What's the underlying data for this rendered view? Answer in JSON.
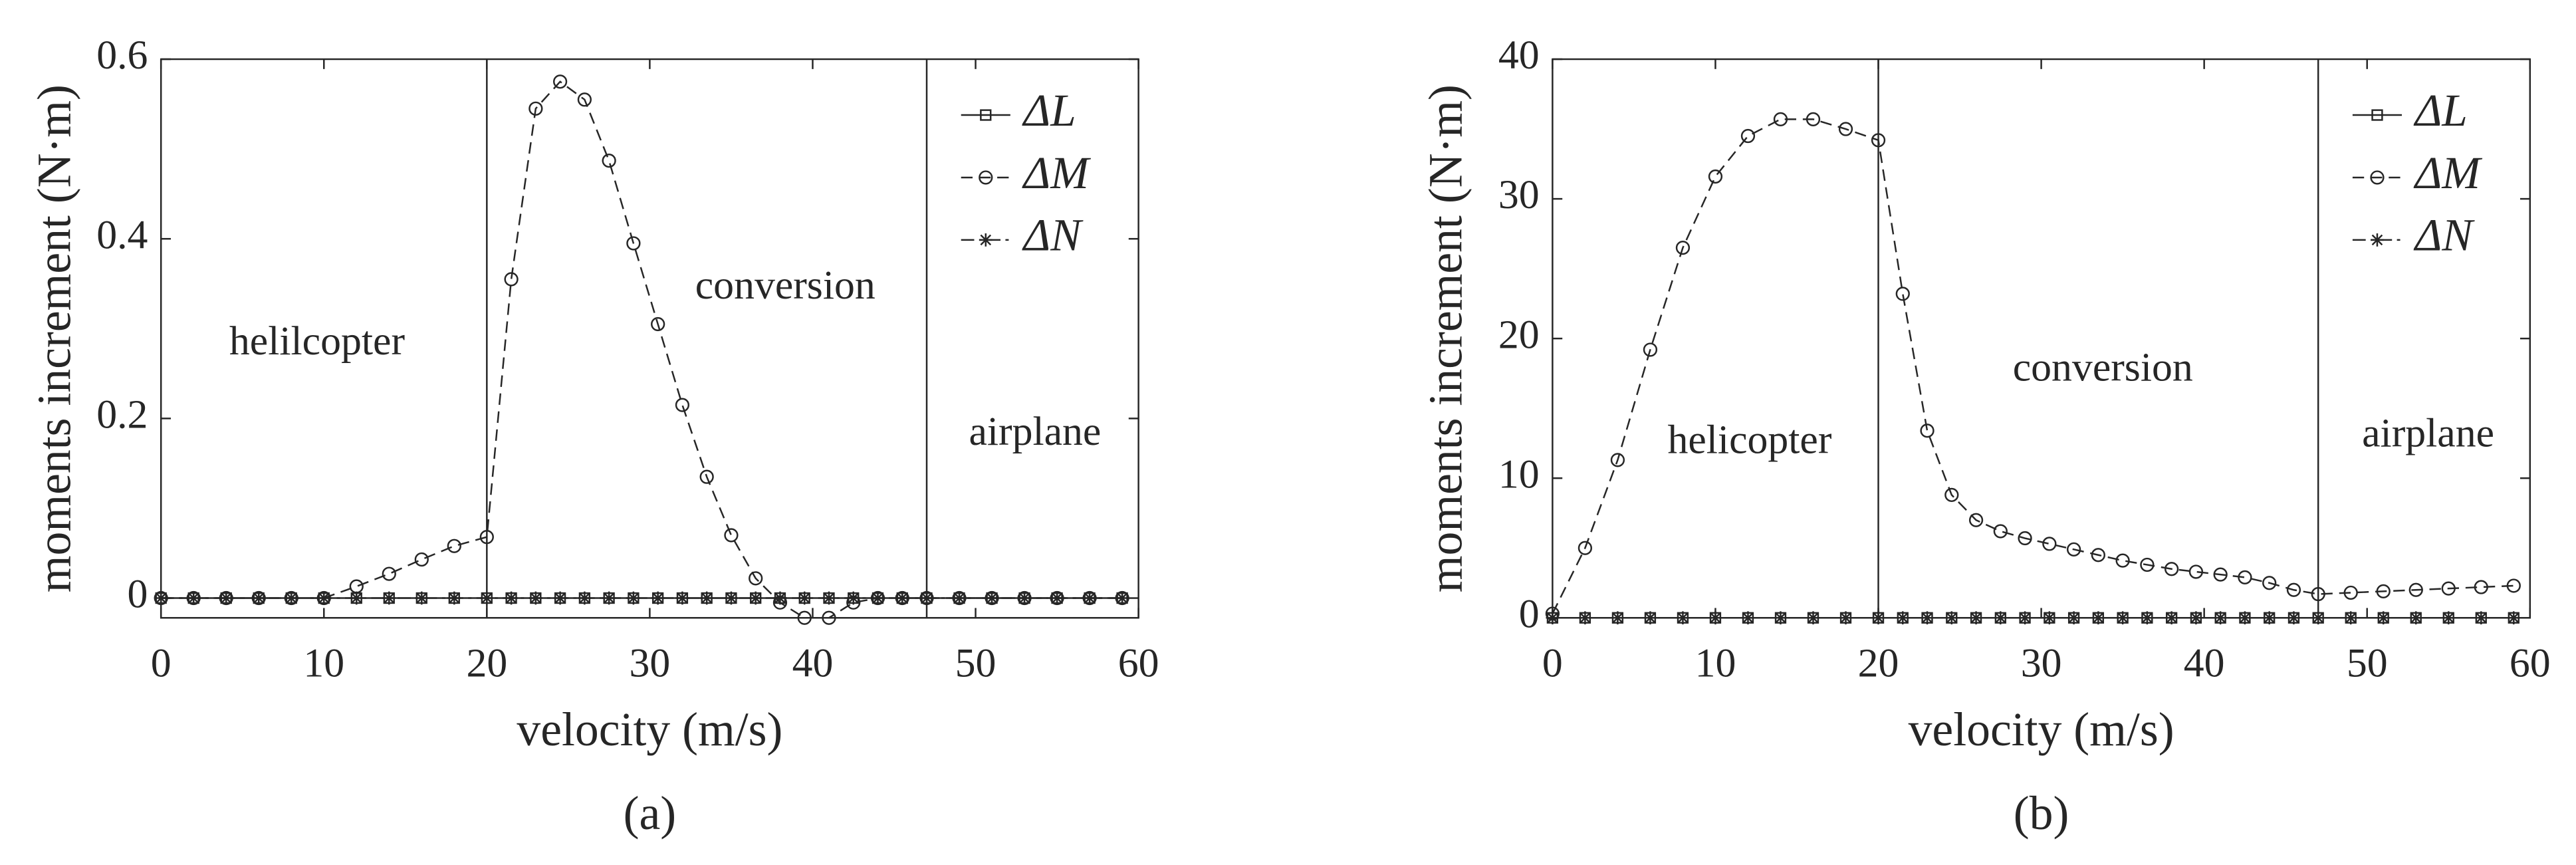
{
  "chart_data": [
    {
      "type": "line",
      "label": "(a)",
      "xlabel": "velocity (m/s)",
      "ylabel": "moments increment (N·m)",
      "x": [
        0,
        2,
        4,
        6,
        8,
        10,
        12,
        14,
        16,
        18,
        20,
        21.5,
        23,
        24.5,
        26,
        27.5,
        29,
        30.5,
        32,
        33.5,
        35,
        36.5,
        38,
        39.5,
        41,
        42.5,
        44,
        45.5,
        47,
        49,
        51,
        53,
        55,
        57,
        59
      ],
      "xlim": [
        0,
        60
      ],
      "xticks": [
        0,
        10,
        20,
        30,
        40,
        50,
        60
      ],
      "ylim": [
        -0.022,
        0.6
      ],
      "yticks": [
        0,
        0.2,
        0.4,
        0.6
      ],
      "boundaries": [
        20,
        47
      ],
      "annotations": [
        "helilcopter",
        "conversion",
        "airplane"
      ],
      "legend": "upper right",
      "series": [
        {
          "name": "ΔL",
          "color": "#262626",
          "linestyle": "solid",
          "marker": "square",
          "values": [
            0,
            0,
            0,
            0,
            0,
            0,
            0,
            0,
            0,
            0,
            0,
            0,
            0,
            0,
            0,
            0,
            0,
            0,
            0,
            0,
            0,
            0,
            0,
            0,
            0,
            0,
            0,
            0,
            0,
            0,
            0,
            0,
            0,
            0,
            0
          ]
        },
        {
          "name": "ΔM",
          "color": "#262626",
          "linestyle": "dashed",
          "marker": "circle",
          "values": [
            0,
            0,
            0,
            0,
            0,
            0,
            0.013,
            0.027,
            0.043,
            0.058,
            0.068,
            0.355,
            0.545,
            0.575,
            0.555,
            0.487,
            0.395,
            0.305,
            0.215,
            0.135,
            0.07,
            0.022,
            -0.005,
            -0.022,
            -0.022,
            -0.005,
            0,
            0,
            0,
            0,
            0,
            0,
            0,
            0,
            0
          ]
        },
        {
          "name": "ΔN",
          "color": "#262626",
          "linestyle": "dashdot",
          "marker": "star",
          "values": [
            0,
            0,
            0,
            0,
            0,
            0,
            0,
            0,
            0,
            0,
            0,
            0,
            0,
            0,
            0,
            0,
            0,
            0,
            0,
            0,
            0,
            0,
            0,
            0,
            0,
            0,
            0,
            0,
            0,
            0,
            0,
            0,
            0,
            0,
            0
          ]
        }
      ]
    },
    {
      "type": "line",
      "label": "(b)",
      "xlabel": "velocity (m/s)",
      "ylabel": "moments increment (N·m)",
      "x": [
        0,
        2,
        4,
        6,
        8,
        10,
        12,
        14,
        16,
        18,
        20,
        21.5,
        23,
        24.5,
        26,
        27.5,
        29,
        30.5,
        32,
        33.5,
        35,
        36.5,
        38,
        39.5,
        41,
        42.5,
        44,
        45.5,
        47,
        49,
        51,
        53,
        55,
        57,
        59
      ],
      "xlim": [
        0,
        60
      ],
      "xticks": [
        0,
        10,
        20,
        30,
        40,
        50,
        60
      ],
      "ylim": [
        0,
        40
      ],
      "yticks": [
        0,
        10,
        20,
        30,
        40
      ],
      "boundaries": [
        20,
        47
      ],
      "annotations": [
        "helicopter",
        "conversion",
        "airplane"
      ],
      "legend": "upper right",
      "series": [
        {
          "name": "ΔL",
          "color": "#262626",
          "linestyle": "solid",
          "marker": "square",
          "values": [
            0,
            0,
            0,
            0,
            0,
            0,
            0,
            0,
            0,
            0,
            0,
            0,
            0,
            0,
            0,
            0,
            0,
            0,
            0,
            0,
            0,
            0,
            0,
            0,
            0,
            0,
            0,
            0,
            0,
            0,
            0,
            0,
            0,
            0,
            0
          ]
        },
        {
          "name": "ΔM",
          "color": "#262626",
          "linestyle": "dashed",
          "marker": "circle",
          "values": [
            0.3,
            5.0,
            11.3,
            19.2,
            26.5,
            31.6,
            34.5,
            35.7,
            35.7,
            35.0,
            34.2,
            23.2,
            13.4,
            8.8,
            7.0,
            6.2,
            5.7,
            5.3,
            4.9,
            4.5,
            4.1,
            3.8,
            3.5,
            3.3,
            3.1,
            2.9,
            2.5,
            2.0,
            1.7,
            1.8,
            1.9,
            2.0,
            2.1,
            2.2,
            2.3
          ]
        },
        {
          "name": "ΔN",
          "color": "#262626",
          "linestyle": "dashdot",
          "marker": "star",
          "values": [
            0,
            0,
            0,
            0,
            0,
            0,
            0,
            0,
            0,
            0,
            0,
            0,
            0,
            0,
            0,
            0,
            0,
            0,
            0,
            0,
            0,
            0,
            0,
            0,
            0,
            0,
            0,
            0,
            0,
            0,
            0,
            0,
            0,
            0,
            0
          ]
        }
      ]
    }
  ]
}
